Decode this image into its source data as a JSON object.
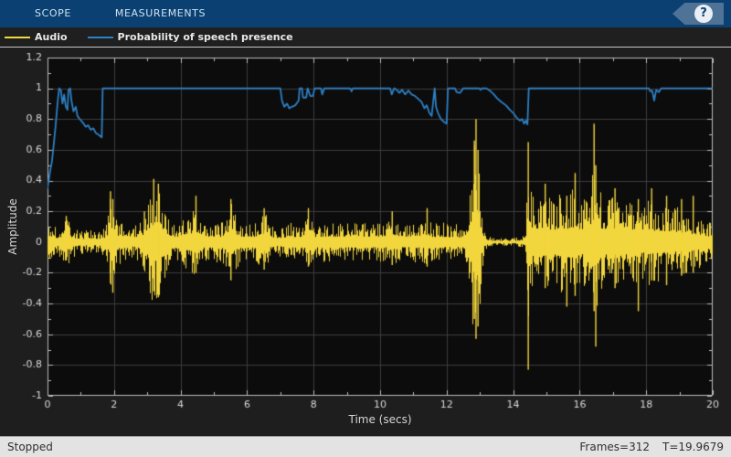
{
  "toolbar": {
    "tabs": [
      {
        "label": "SCOPE"
      },
      {
        "label": "MEASUREMENTS"
      }
    ],
    "help_icon": "?"
  },
  "legend": {
    "items": [
      {
        "label": "Audio",
        "color": "#f2d63d"
      },
      {
        "label": "Probability of speech presence",
        "color": "#2d80c5"
      }
    ]
  },
  "status_bar": {
    "state": "Stopped",
    "frames": "Frames=312",
    "time": "T=19.9679"
  },
  "chart_data": {
    "type": "line",
    "title": "",
    "xlabel": "Time (secs)",
    "ylabel": "Amplitude",
    "xlim": [
      0,
      20
    ],
    "ylim": [
      -1,
      1.2
    ],
    "x_major_ticks": [
      0,
      2,
      4,
      6,
      8,
      10,
      12,
      14,
      16,
      18,
      20
    ],
    "x_minor_step": 1,
    "y_major_ticks": [
      -1,
      -0.8,
      -0.6,
      -0.4,
      -0.2,
      0,
      0.2,
      0.4,
      0.6,
      0.8,
      1,
      1.2
    ],
    "y_minor_step": 0.1,
    "grid": true,
    "legend_position": "top-strip",
    "plot_bg": "#0c0c0c",
    "figure_bg": "#1e1e1e",
    "grid_color": "#3d3d3d",
    "axis_color": "#bdbdbd",
    "tick_label_color": "#d8d8d8",
    "noise_seed": 9,
    "series": [
      {
        "name": "Audio",
        "render": "waveform-envelope",
        "color": "#f2d63d",
        "envelope": [
          [
            0,
            0.13
          ],
          [
            0.15,
            0.1
          ],
          [
            0.3,
            0.09
          ],
          [
            0.45,
            0.12
          ],
          [
            0.6,
            0.15
          ],
          [
            0.75,
            0.1
          ],
          [
            0.9,
            0.08
          ],
          [
            1.1,
            0.07
          ],
          [
            1.3,
            0.08
          ],
          [
            1.5,
            0.07
          ],
          [
            1.7,
            0.09
          ],
          [
            1.8,
            0.15
          ],
          [
            1.9,
            0.33
          ],
          [
            2.0,
            0.3
          ],
          [
            2.1,
            0.15
          ],
          [
            2.25,
            0.12
          ],
          [
            2.4,
            0.14
          ],
          [
            2.55,
            0.1
          ],
          [
            2.7,
            0.12
          ],
          [
            2.85,
            0.16
          ],
          [
            3.0,
            0.28
          ],
          [
            3.1,
            0.35
          ],
          [
            3.2,
            0.42
          ],
          [
            3.3,
            0.38
          ],
          [
            3.4,
            0.3
          ],
          [
            3.5,
            0.26
          ],
          [
            3.6,
            0.18
          ],
          [
            3.75,
            0.13
          ],
          [
            3.9,
            0.12
          ],
          [
            4.1,
            0.17
          ],
          [
            4.3,
            0.2
          ],
          [
            4.5,
            0.22
          ],
          [
            4.65,
            0.13
          ],
          [
            4.8,
            0.12
          ],
          [
            5.0,
            0.13
          ],
          [
            5.2,
            0.12
          ],
          [
            5.35,
            0.18
          ],
          [
            5.5,
            0.26
          ],
          [
            5.65,
            0.18
          ],
          [
            5.8,
            0.12
          ],
          [
            6.0,
            0.13
          ],
          [
            6.2,
            0.12
          ],
          [
            6.4,
            0.17
          ],
          [
            6.55,
            0.2
          ],
          [
            6.7,
            0.12
          ],
          [
            6.9,
            0.09
          ],
          [
            7.1,
            0.1
          ],
          [
            7.3,
            0.13
          ],
          [
            7.5,
            0.11
          ],
          [
            7.7,
            0.12
          ],
          [
            7.85,
            0.2
          ],
          [
            8.0,
            0.12
          ],
          [
            8.2,
            0.12
          ],
          [
            8.4,
            0.13
          ],
          [
            8.6,
            0.12
          ],
          [
            8.8,
            0.13
          ],
          [
            9.0,
            0.12
          ],
          [
            9.2,
            0.13
          ],
          [
            9.4,
            0.12
          ],
          [
            9.6,
            0.13
          ],
          [
            9.8,
            0.12
          ],
          [
            10.0,
            0.13
          ],
          [
            10.2,
            0.12
          ],
          [
            10.4,
            0.15
          ],
          [
            10.6,
            0.12
          ],
          [
            10.8,
            0.11
          ],
          [
            11.0,
            0.14
          ],
          [
            11.2,
            0.12
          ],
          [
            11.4,
            0.16
          ],
          [
            11.6,
            0.11
          ],
          [
            11.8,
            0.13
          ],
          [
            12.0,
            0.11
          ],
          [
            12.2,
            0.12
          ],
          [
            12.4,
            0.1
          ],
          [
            12.55,
            0.14
          ],
          [
            12.7,
            0.35
          ],
          [
            12.8,
            0.62
          ],
          [
            12.88,
            0.72
          ],
          [
            12.95,
            0.55
          ],
          [
            13.05,
            0.25
          ],
          [
            13.15,
            0.05
          ],
          [
            13.35,
            0.03
          ],
          [
            13.6,
            0.025
          ],
          [
            13.9,
            0.025
          ],
          [
            14.15,
            0.03
          ],
          [
            14.35,
            0.05
          ],
          [
            14.45,
            0.55
          ],
          [
            14.55,
            0.32
          ],
          [
            14.7,
            0.28
          ],
          [
            14.85,
            0.33
          ],
          [
            15.0,
            0.3
          ],
          [
            15.15,
            0.27
          ],
          [
            15.3,
            0.3
          ],
          [
            15.45,
            0.33
          ],
          [
            15.6,
            0.3
          ],
          [
            15.75,
            0.35
          ],
          [
            15.9,
            0.32
          ],
          [
            16.05,
            0.28
          ],
          [
            16.2,
            0.3
          ],
          [
            16.35,
            0.45
          ],
          [
            16.45,
            0.55
          ],
          [
            16.55,
            0.35
          ],
          [
            16.7,
            0.3
          ],
          [
            16.85,
            0.27
          ],
          [
            17.0,
            0.3
          ],
          [
            17.15,
            0.27
          ],
          [
            17.3,
            0.3
          ],
          [
            17.45,
            0.26
          ],
          [
            17.6,
            0.24
          ],
          [
            17.75,
            0.3
          ],
          [
            17.9,
            0.24
          ],
          [
            18.05,
            0.27
          ],
          [
            18.2,
            0.26
          ],
          [
            18.35,
            0.25
          ],
          [
            18.5,
            0.24
          ],
          [
            18.65,
            0.25
          ],
          [
            18.8,
            0.22
          ],
          [
            18.95,
            0.23
          ],
          [
            19.1,
            0.2
          ],
          [
            19.25,
            0.21
          ],
          [
            19.4,
            0.18
          ],
          [
            19.55,
            0.17
          ],
          [
            19.7,
            0.15
          ],
          [
            19.85,
            0.13
          ],
          [
            20,
            0.12
          ]
        ],
        "spikes": [
          [
            0.55,
            0.17,
            -0.12
          ],
          [
            1.88,
            0.33,
            -0.27
          ],
          [
            1.95,
            0.28,
            -0.33
          ],
          [
            2.9,
            0.2,
            -0.18
          ],
          [
            3.18,
            0.41,
            -0.32
          ],
          [
            3.32,
            0.38,
            -0.36
          ],
          [
            4.45,
            0.3,
            -0.2
          ],
          [
            5.5,
            0.28,
            -0.25
          ],
          [
            6.5,
            0.22,
            -0.18
          ],
          [
            7.83,
            0.22,
            -0.16
          ],
          [
            10.35,
            0.2,
            -0.15
          ],
          [
            11.4,
            0.22,
            -0.16
          ],
          [
            12.82,
            0.66,
            -0.5
          ],
          [
            12.87,
            0.8,
            -0.63
          ],
          [
            12.93,
            0.6,
            -0.55
          ],
          [
            14.44,
            0.65,
            -0.83
          ],
          [
            14.95,
            0.38,
            -0.3
          ],
          [
            15.6,
            0.3,
            -0.42
          ],
          [
            15.85,
            0.45,
            -0.35
          ],
          [
            16.42,
            0.77,
            -0.45
          ],
          [
            16.47,
            0.5,
            -0.68
          ],
          [
            17.05,
            0.35,
            -0.3
          ],
          [
            17.75,
            0.28,
            -0.45
          ],
          [
            18.15,
            0.35,
            -0.25
          ],
          [
            18.6,
            0.3,
            -0.28
          ],
          [
            19.05,
            0.28,
            -0.22
          ],
          [
            19.4,
            0.3,
            -0.2
          ]
        ]
      },
      {
        "name": "Probability of speech presence",
        "render": "polyline",
        "color": "#2d80c5",
        "points": [
          [
            0,
            0.35
          ],
          [
            0.07,
            0.45
          ],
          [
            0.13,
            0.52
          ],
          [
            0.18,
            0.62
          ],
          [
            0.24,
            0.75
          ],
          [
            0.3,
            0.9
          ],
          [
            0.35,
            1.0
          ],
          [
            0.4,
            0.99
          ],
          [
            0.45,
            0.9
          ],
          [
            0.5,
            0.96
          ],
          [
            0.55,
            0.88
          ],
          [
            0.6,
            0.86
          ],
          [
            0.63,
            0.99
          ],
          [
            0.68,
            1.0
          ],
          [
            0.72,
            0.92
          ],
          [
            0.78,
            0.85
          ],
          [
            0.85,
            0.88
          ],
          [
            0.9,
            0.82
          ],
          [
            0.97,
            0.8
          ],
          [
            1.05,
            0.78
          ],
          [
            1.15,
            0.75
          ],
          [
            1.22,
            0.76
          ],
          [
            1.3,
            0.73
          ],
          [
            1.38,
            0.74
          ],
          [
            1.45,
            0.71
          ],
          [
            1.52,
            0.7
          ],
          [
            1.58,
            0.69
          ],
          [
            1.63,
            0.68
          ],
          [
            1.66,
            1.0
          ],
          [
            7.0,
            1.0
          ],
          [
            7.05,
            0.92
          ],
          [
            7.12,
            0.88
          ],
          [
            7.2,
            0.9
          ],
          [
            7.27,
            0.87
          ],
          [
            7.35,
            0.88
          ],
          [
            7.45,
            0.89
          ],
          [
            7.55,
            0.92
          ],
          [
            7.58,
            1.0
          ],
          [
            7.65,
            1.0
          ],
          [
            7.68,
            0.94
          ],
          [
            7.78,
            0.94
          ],
          [
            7.82,
            1.0
          ],
          [
            7.9,
            0.95
          ],
          [
            7.98,
            0.95
          ],
          [
            8.03,
            1.0
          ],
          [
            8.22,
            1.0
          ],
          [
            8.26,
            0.96
          ],
          [
            8.32,
            1.0
          ],
          [
            9.1,
            1.0
          ],
          [
            9.14,
            0.98
          ],
          [
            9.18,
            1.0
          ],
          [
            10.3,
            1.0
          ],
          [
            10.35,
            0.96
          ],
          [
            10.42,
            1.0
          ],
          [
            10.5,
            0.99
          ],
          [
            10.58,
            0.97
          ],
          [
            10.66,
            0.99
          ],
          [
            10.75,
            0.96
          ],
          [
            10.85,
            0.985
          ],
          [
            10.95,
            0.96
          ],
          [
            11.05,
            0.95
          ],
          [
            11.15,
            0.93
          ],
          [
            11.25,
            0.91
          ],
          [
            11.33,
            0.87
          ],
          [
            11.4,
            0.89
          ],
          [
            11.48,
            0.84
          ],
          [
            11.55,
            0.82
          ],
          [
            11.6,
            0.92
          ],
          [
            11.64,
            1.0
          ],
          [
            11.68,
            0.88
          ],
          [
            11.74,
            0.84
          ],
          [
            11.83,
            0.8
          ],
          [
            11.93,
            0.78
          ],
          [
            12.0,
            0.77
          ],
          [
            12.04,
            1.0
          ],
          [
            12.25,
            1.0
          ],
          [
            12.3,
            0.975
          ],
          [
            12.4,
            0.97
          ],
          [
            12.5,
            1.0
          ],
          [
            12.98,
            1.0
          ],
          [
            13.02,
            0.99
          ],
          [
            13.06,
            1.0
          ],
          [
            13.2,
            1.0
          ],
          [
            13.3,
            0.985
          ],
          [
            13.42,
            0.96
          ],
          [
            13.52,
            0.935
          ],
          [
            13.65,
            0.91
          ],
          [
            13.78,
            0.89
          ],
          [
            13.9,
            0.86
          ],
          [
            14.0,
            0.84
          ],
          [
            14.1,
            0.81
          ],
          [
            14.2,
            0.79
          ],
          [
            14.27,
            0.8
          ],
          [
            14.33,
            0.77
          ],
          [
            14.38,
            0.79
          ],
          [
            14.43,
            0.765
          ],
          [
            14.47,
            1.0
          ],
          [
            18.08,
            1.0
          ],
          [
            18.12,
            0.98
          ],
          [
            18.18,
            0.985
          ],
          [
            18.24,
            0.92
          ],
          [
            18.3,
            0.99
          ],
          [
            18.38,
            0.975
          ],
          [
            18.45,
            1.0
          ],
          [
            20,
            1.0
          ]
        ]
      }
    ]
  }
}
